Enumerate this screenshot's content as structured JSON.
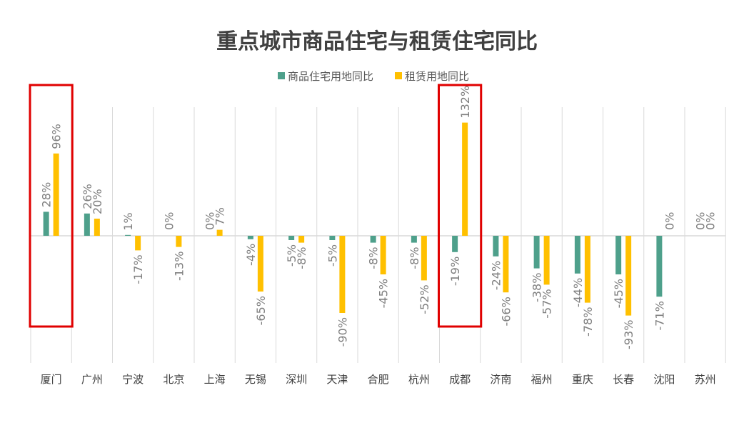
{
  "chart_data": {
    "type": "bar",
    "title": "重点城市商品住宅与租赁住宅同比",
    "categories": [
      "厦门",
      "广州",
      "宁波",
      "北京",
      "上海",
      "无锡",
      "深圳",
      "天津",
      "合肥",
      "杭州",
      "成都",
      "济南",
      "福州",
      "重庆",
      "长春",
      "沈阳",
      "苏州"
    ],
    "series": [
      {
        "name": "商品住宅用地同比",
        "values": [
          28,
          26,
          1,
          0,
          0,
          -4,
          -5,
          -5,
          -8,
          -8,
          -19,
          -24,
          -38,
          -44,
          -45,
          -71,
          0
        ]
      },
      {
        "name": "租赁用地同比",
        "values": [
          96,
          20,
          -17,
          -13,
          7,
          -65,
          -8,
          -90,
          -45,
          -52,
          132,
          -66,
          -57,
          -78,
          -93,
          0,
          0
        ]
      }
    ],
    "value_format": "percent",
    "gridlines": "vertical",
    "legend_position": "top-center",
    "highlighted_categories": [
      "厦门",
      "成都"
    ],
    "colors": {
      "series": [
        "#4ea08b",
        "#ffc000"
      ],
      "highlight_box": "#e00000",
      "gridline": "#d9d9d9",
      "axis": "#d9d9d9",
      "title": "#404040",
      "data_label": "#7f7f7f"
    }
  }
}
